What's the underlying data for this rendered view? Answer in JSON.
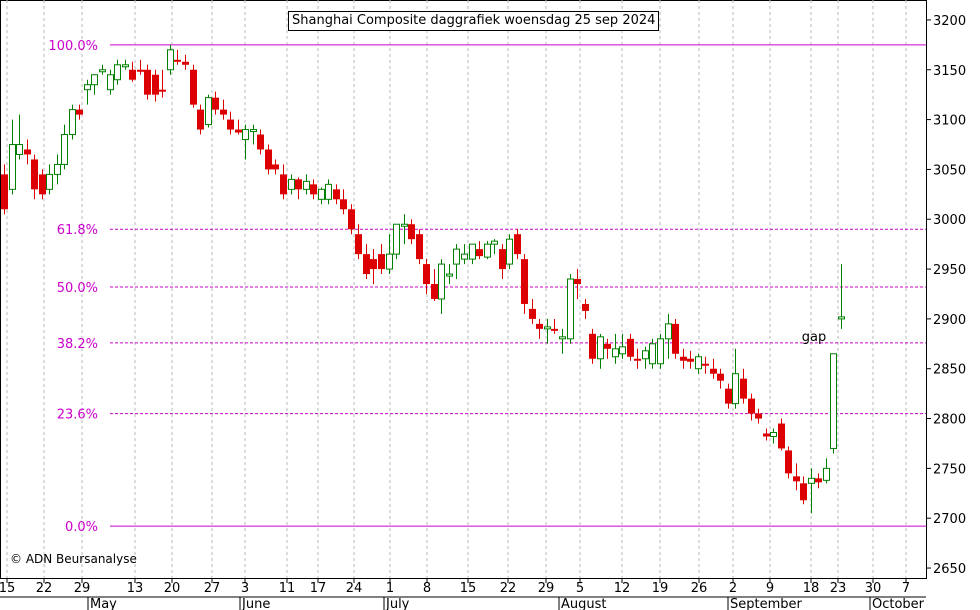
{
  "colors": {
    "up": "#008000",
    "down": "#dd0000",
    "fib": "#cc00cc",
    "grid": "#b8b8b8"
  },
  "chart_data": {
    "type": "candlestick",
    "title": "Shanghai Composite daggrafiek woensdag 25 sep 2024",
    "copyright": "© ADN Beursanalyse",
    "ylim": [
      2640,
      3220
    ],
    "y_ticks": [
      2650,
      2700,
      2750,
      2800,
      2850,
      2900,
      2950,
      3000,
      3050,
      3100,
      3150,
      3200
    ],
    "x_ticks": [
      "15",
      "22",
      "29",
      "13",
      "20",
      "27",
      "3",
      "11",
      "17",
      "24",
      "1",
      "8",
      "15",
      "22",
      "29",
      "5",
      "12",
      "19",
      "26",
      "2",
      "9",
      "18",
      "23",
      "30",
      "7"
    ],
    "months": [
      "May",
      "June",
      "July",
      "August",
      "September",
      "October"
    ],
    "fib_levels": [
      {
        "label": "100.0%",
        "value": 3175
      },
      {
        "label": "61.8%",
        "value": 2990
      },
      {
        "label": "50.0%",
        "value": 2932
      },
      {
        "label": "38.2%",
        "value": 2876
      },
      {
        "label": "23.6%",
        "value": 2805
      },
      {
        "label": "0.0%",
        "value": 2692
      }
    ],
    "annotation": {
      "text": "gap",
      "x": "24 sep",
      "y": 2880
    },
    "candles": [
      {
        "d": "15 apr",
        "o": 3045,
        "h": 3055,
        "l": 3005,
        "c": 3010
      },
      {
        "d": "16 apr",
        "o": 3030,
        "h": 3100,
        "l": 3025,
        "c": 3075
      },
      {
        "d": "17 apr",
        "o": 3065,
        "h": 3105,
        "l": 3060,
        "c": 3075
      },
      {
        "d": "18 apr",
        "o": 3070,
        "h": 3080,
        "l": 3055,
        "c": 3065
      },
      {
        "d": "19 apr",
        "o": 3060,
        "h": 3065,
        "l": 3020,
        "c": 3030
      },
      {
        "d": "22 apr",
        "o": 3045,
        "h": 3050,
        "l": 3020,
        "c": 3025
      },
      {
        "d": "23 apr",
        "o": 3030,
        "h": 3055,
        "l": 3025,
        "c": 3045
      },
      {
        "d": "24 apr",
        "o": 3045,
        "h": 3065,
        "l": 3035,
        "c": 3055
      },
      {
        "d": "25 apr",
        "o": 3055,
        "h": 3095,
        "l": 3050,
        "c": 3085
      },
      {
        "d": "26 apr",
        "o": 3085,
        "h": 3115,
        "l": 3080,
        "c": 3110
      },
      {
        "d": "29 apr",
        "o": 3110,
        "h": 3115,
        "l": 3100,
        "c": 3105
      },
      {
        "d": "30 apr",
        "o": 3130,
        "h": 3140,
        "l": 3115,
        "c": 3135
      },
      {
        "d": "6 may",
        "o": 3135,
        "h": 3145,
        "l": 3125,
        "c": 3145
      },
      {
        "d": "7 may",
        "o": 3148,
        "h": 3155,
        "l": 3145,
        "c": 3150
      },
      {
        "d": "8 may",
        "o": 3130,
        "h": 3150,
        "l": 3125,
        "c": 3145
      },
      {
        "d": "9 may",
        "o": 3140,
        "h": 3160,
        "l": 3135,
        "c": 3155
      },
      {
        "d": "10 may",
        "o": 3155,
        "h": 3160,
        "l": 3150,
        "c": 3155
      },
      {
        "d": "13 may",
        "o": 3150,
        "h": 3158,
        "l": 3138,
        "c": 3140
      },
      {
        "d": "14 may",
        "o": 3150,
        "h": 3160,
        "l": 3145,
        "c": 3148
      },
      {
        "d": "15 may",
        "o": 3150,
        "h": 3155,
        "l": 3120,
        "c": 3125
      },
      {
        "d": "16 may",
        "o": 3145,
        "h": 3150,
        "l": 3118,
        "c": 3125
      },
      {
        "d": "17 may",
        "o": 3130,
        "h": 3150,
        "l": 3122,
        "c": 3128
      },
      {
        "d": "20 may",
        "o": 3150,
        "h": 3175,
        "l": 3145,
        "c": 3170
      },
      {
        "d": "21 may",
        "o": 3160,
        "h": 3170,
        "l": 3155,
        "c": 3158
      },
      {
        "d": "22 may",
        "o": 3158,
        "h": 3165,
        "l": 3150,
        "c": 3155
      },
      {
        "d": "23 may",
        "o": 3150,
        "h": 3155,
        "l": 3112,
        "c": 3115
      },
      {
        "d": "24 may",
        "o": 3110,
        "h": 3115,
        "l": 3085,
        "c": 3090
      },
      {
        "d": "27 may",
        "o": 3095,
        "h": 3125,
        "l": 3092,
        "c": 3122
      },
      {
        "d": "28 may",
        "o": 3122,
        "h": 3128,
        "l": 3105,
        "c": 3110
      },
      {
        "d": "29 may",
        "o": 3110,
        "h": 3120,
        "l": 3100,
        "c": 3105
      },
      {
        "d": "30 may",
        "o": 3100,
        "h": 3108,
        "l": 3085,
        "c": 3090
      },
      {
        "d": "31 may",
        "o": 3090,
        "h": 3100,
        "l": 3085,
        "c": 3087
      },
      {
        "d": "3 jun",
        "o": 3080,
        "h": 3095,
        "l": 3060,
        "c": 3090
      },
      {
        "d": "4 jun",
        "o": 3088,
        "h": 3095,
        "l": 3075,
        "c": 3090
      },
      {
        "d": "5 jun",
        "o": 3085,
        "h": 3090,
        "l": 3065,
        "c": 3070
      },
      {
        "d": "6 jun",
        "o": 3070,
        "h": 3075,
        "l": 3045,
        "c": 3050
      },
      {
        "d": "7 jun",
        "o": 3055,
        "h": 3060,
        "l": 3045,
        "c": 3050
      },
      {
        "d": "11 jun",
        "o": 3045,
        "h": 3055,
        "l": 3020,
        "c": 3025
      },
      {
        "d": "12 jun",
        "o": 3030,
        "h": 3045,
        "l": 3025,
        "c": 3040
      },
      {
        "d": "13 jun",
        "o": 3040,
        "h": 3042,
        "l": 3020,
        "c": 3030
      },
      {
        "d": "14 jun",
        "o": 3030,
        "h": 3045,
        "l": 3025,
        "c": 3038
      },
      {
        "d": "17 jun",
        "o": 3035,
        "h": 3040,
        "l": 3020,
        "c": 3025
      },
      {
        "d": "18 jun",
        "o": 3020,
        "h": 3032,
        "l": 3015,
        "c": 3030
      },
      {
        "d": "19 jun",
        "o": 3020,
        "h": 3040,
        "l": 3015,
        "c": 3035
      },
      {
        "d": "20 jun",
        "o": 3030,
        "h": 3035,
        "l": 3015,
        "c": 3020
      },
      {
        "d": "21 jun",
        "o": 3020,
        "h": 3030,
        "l": 3005,
        "c": 3010
      },
      {
        "d": "24 jun",
        "o": 3010,
        "h": 3015,
        "l": 2985,
        "c": 2990
      },
      {
        "d": "25 jun",
        "o": 2985,
        "h": 2995,
        "l": 2960,
        "c": 2965
      },
      {
        "d": "26 jun",
        "o": 2965,
        "h": 2975,
        "l": 2940,
        "c": 2945
      },
      {
        "d": "27 jun",
        "o": 2960,
        "h": 2970,
        "l": 2935,
        "c": 2950
      },
      {
        "d": "28 jun",
        "o": 2965,
        "h": 2975,
        "l": 2945,
        "c": 2950
      },
      {
        "d": "1 jul",
        "o": 2950,
        "h": 2985,
        "l": 2945,
        "c": 2965
      },
      {
        "d": "2 jul",
        "o": 2965,
        "h": 2995,
        "l": 2960,
        "c": 2995
      },
      {
        "d": "3 jul",
        "o": 2995,
        "h": 3005,
        "l": 2975,
        "c": 2995
      },
      {
        "d": "4 jul",
        "o": 2995,
        "h": 3000,
        "l": 2975,
        "c": 2980
      },
      {
        "d": "5 jul",
        "o": 2985,
        "h": 2990,
        "l": 2955,
        "c": 2960
      },
      {
        "d": "8 jul",
        "o": 2955,
        "h": 2960,
        "l": 2925,
        "c": 2935
      },
      {
        "d": "9 jul",
        "o": 2935,
        "h": 2950,
        "l": 2918,
        "c": 2920
      },
      {
        "d": "10 jul",
        "o": 2920,
        "h": 2960,
        "l": 2905,
        "c": 2955
      },
      {
        "d": "11 jul",
        "o": 2945,
        "h": 2955,
        "l": 2935,
        "c": 2945
      },
      {
        "d": "12 jul",
        "o": 2955,
        "h": 2975,
        "l": 2940,
        "c": 2970
      },
      {
        "d": "15 jul",
        "o": 2960,
        "h": 2975,
        "l": 2955,
        "c": 2965
      },
      {
        "d": "16 jul",
        "o": 2960,
        "h": 2975,
        "l": 2955,
        "c": 2975
      },
      {
        "d": "17 jul",
        "o": 2970,
        "h": 2978,
        "l": 2960,
        "c": 2963
      },
      {
        "d": "18 jul",
        "o": 2962,
        "h": 2978,
        "l": 2960,
        "c": 2975
      },
      {
        "d": "19 jul",
        "o": 2975,
        "h": 2980,
        "l": 2965,
        "c": 2978
      },
      {
        "d": "22 jul",
        "o": 2970,
        "h": 2975,
        "l": 2940,
        "c": 2950
      },
      {
        "d": "23 jul",
        "o": 2955,
        "h": 2985,
        "l": 2950,
        "c": 2980
      },
      {
        "d": "24 jul",
        "o": 2985,
        "h": 2990,
        "l": 2960,
        "c": 2965
      },
      {
        "d": "25 jul",
        "o": 2960,
        "h": 2965,
        "l": 2905,
        "c": 2915
      },
      {
        "d": "26 jul",
        "o": 2910,
        "h": 2920,
        "l": 2895,
        "c": 2900
      },
      {
        "d": "29 jul",
        "o": 2895,
        "h": 2900,
        "l": 2880,
        "c": 2890
      },
      {
        "d": "30 jul",
        "o": 2890,
        "h": 2900,
        "l": 2875,
        "c": 2892
      },
      {
        "d": "31 jul",
        "o": 2890,
        "h": 2900,
        "l": 2885,
        "c": 2888
      },
      {
        "d": "1 aug",
        "o": 2880,
        "h": 2890,
        "l": 2865,
        "c": 2882
      },
      {
        "d": "2 aug",
        "o": 2880,
        "h": 2945,
        "l": 2875,
        "c": 2940
      },
      {
        "d": "5 aug",
        "o": 2940,
        "h": 2950,
        "l": 2920,
        "c": 2935
      },
      {
        "d": "6 aug",
        "o": 2915,
        "h": 2920,
        "l": 2900,
        "c": 2908
      },
      {
        "d": "7 aug",
        "o": 2885,
        "h": 2890,
        "l": 2855,
        "c": 2860
      },
      {
        "d": "8 aug",
        "o": 2860,
        "h": 2885,
        "l": 2850,
        "c": 2882
      },
      {
        "d": "9 aug",
        "o": 2875,
        "h": 2880,
        "l": 2860,
        "c": 2870
      },
      {
        "d": "12 aug",
        "o": 2862,
        "h": 2885,
        "l": 2855,
        "c": 2870
      },
      {
        "d": "13 aug",
        "o": 2865,
        "h": 2885,
        "l": 2860,
        "c": 2872
      },
      {
        "d": "14 aug",
        "o": 2880,
        "h": 2885,
        "l": 2858,
        "c": 2862
      },
      {
        "d": "15 aug",
        "o": 2860,
        "h": 2870,
        "l": 2850,
        "c": 2858
      },
      {
        "d": "16 aug",
        "o": 2860,
        "h": 2872,
        "l": 2850,
        "c": 2868
      },
      {
        "d": "19 aug",
        "o": 2855,
        "h": 2880,
        "l": 2850,
        "c": 2875
      },
      {
        "d": "20 aug",
        "o": 2855,
        "h": 2885,
        "l": 2850,
        "c": 2880
      },
      {
        "d": "21 aug",
        "o": 2880,
        "h": 2905,
        "l": 2860,
        "c": 2895
      },
      {
        "d": "22 aug",
        "o": 2895,
        "h": 2900,
        "l": 2860,
        "c": 2865
      },
      {
        "d": "23 aug",
        "o": 2862,
        "h": 2870,
        "l": 2850,
        "c": 2858
      },
      {
        "d": "26 aug",
        "o": 2860,
        "h": 2868,
        "l": 2850,
        "c": 2857
      },
      {
        "d": "27 aug",
        "o": 2850,
        "h": 2865,
        "l": 2845,
        "c": 2862
      },
      {
        "d": "28 aug",
        "o": 2855,
        "h": 2862,
        "l": 2845,
        "c": 2853
      },
      {
        "d": "29 aug",
        "o": 2850,
        "h": 2860,
        "l": 2840,
        "c": 2845
      },
      {
        "d": "30 aug",
        "o": 2845,
        "h": 2850,
        "l": 2830,
        "c": 2838
      },
      {
        "d": "2 sep",
        "o": 2830,
        "h": 2835,
        "l": 2810,
        "c": 2815
      },
      {
        "d": "3 sep",
        "o": 2815,
        "h": 2870,
        "l": 2810,
        "c": 2845
      },
      {
        "d": "4 sep",
        "o": 2840,
        "h": 2850,
        "l": 2815,
        "c": 2820
      },
      {
        "d": "5 sep",
        "o": 2820,
        "h": 2825,
        "l": 2798,
        "c": 2805
      },
      {
        "d": "6 sep",
        "o": 2805,
        "h": 2810,
        "l": 2795,
        "c": 2800
      },
      {
        "d": "9 sep",
        "o": 2785,
        "h": 2790,
        "l": 2778,
        "c": 2782
      },
      {
        "d": "10 sep",
        "o": 2782,
        "h": 2790,
        "l": 2775,
        "c": 2786
      },
      {
        "d": "11 sep",
        "o": 2795,
        "h": 2800,
        "l": 2768,
        "c": 2770
      },
      {
        "d": "12 sep",
        "o": 2768,
        "h": 2772,
        "l": 2740,
        "c": 2745
      },
      {
        "d": "13 sep",
        "o": 2742,
        "h": 2755,
        "l": 2728,
        "c": 2737
      },
      {
        "d": "18 sep",
        "o": 2735,
        "h": 2742,
        "l": 2714,
        "c": 2718
      },
      {
        "d": "19 sep",
        "o": 2735,
        "h": 2750,
        "l": 2705,
        "c": 2740
      },
      {
        "d": "20 sep",
        "o": 2740,
        "h": 2745,
        "l": 2730,
        "c": 2736
      },
      {
        "d": "23 sep",
        "o": 2738,
        "h": 2760,
        "l": 2735,
        "c": 2750
      },
      {
        "d": "24 sep",
        "o": 2770,
        "h": 2865,
        "l": 2765,
        "c": 2865
      },
      {
        "d": "25 sep",
        "o": 2900,
        "h": 2955,
        "l": 2890,
        "c": 2902
      }
    ]
  }
}
